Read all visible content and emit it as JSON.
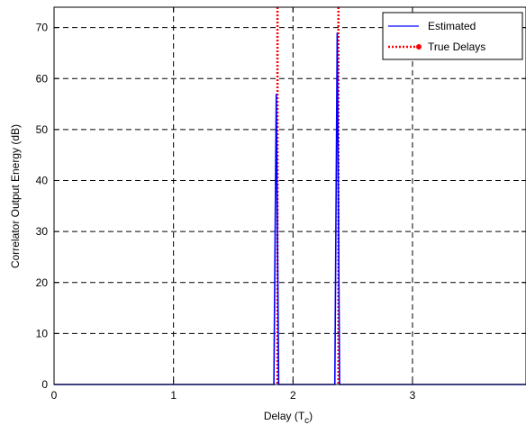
{
  "chart_data": {
    "type": "line",
    "xlabel": "Delay (T",
    "xlabel_sub": "c",
    "xlabel_tail": ")",
    "ylabel": "Correlator Output Energy (dB)",
    "xlim": [
      0,
      3.95
    ],
    "ylim": [
      0,
      74
    ],
    "x_ticks": [
      0,
      1,
      2,
      3
    ],
    "y_ticks": [
      0,
      10,
      20,
      30,
      40,
      50,
      60,
      70
    ],
    "grid": true,
    "legend_position": "top-right",
    "series": [
      {
        "name": "Estimated",
        "color": "#0000ff",
        "style": "solid",
        "x": [
          0,
          1.84,
          1.86,
          1.88,
          1.9,
          2.35,
          2.37,
          2.39,
          2.41,
          3.95
        ],
        "y": [
          0,
          0,
          57,
          0,
          0,
          0,
          69,
          0,
          0,
          0
        ]
      },
      {
        "name": "True Delays",
        "color": "#ff0000",
        "style": "dotted",
        "marker": "circle",
        "delays": [
          1.87,
          2.38
        ]
      }
    ]
  }
}
